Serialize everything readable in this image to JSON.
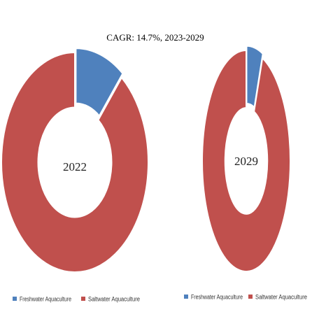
{
  "chart_data": [
    {
      "type": "donut",
      "title": "CAGR:   14.7%, 2023-2029",
      "center_label": "2022",
      "categories": [
        "Freshwater Aquaculture",
        "Saltwater Aquaculture"
      ],
      "values": [
        11,
        89
      ],
      "colors": [
        "#4f81bd",
        "#c0504d"
      ]
    },
    {
      "type": "donut",
      "center_label": "2029",
      "categories": [
        "Freshwater Aquaculture",
        "Saltwater Aquaculture"
      ],
      "values": [
        6,
        94
      ],
      "colors": [
        "#4f81bd",
        "#c0504d"
      ]
    }
  ]
}
